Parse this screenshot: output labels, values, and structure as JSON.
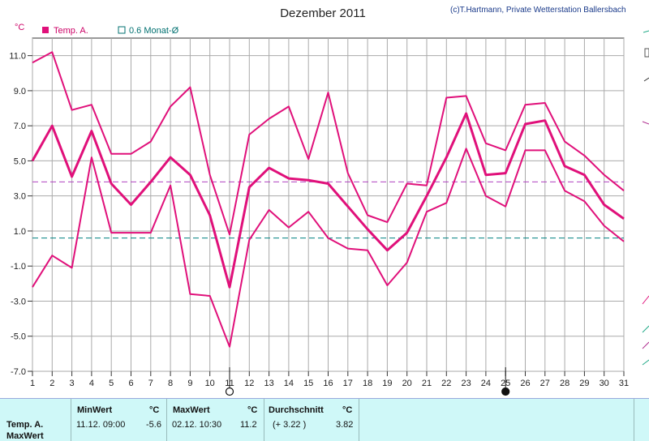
{
  "header": {
    "title": "Dezember 2011",
    "credit": "(c)T.Hartmann, Private Wetterstation Ballersbach",
    "unit": "°C"
  },
  "legend": {
    "series1": "Temp. A.",
    "series2": "0.6 Monat-Ø"
  },
  "chart_data": {
    "type": "line",
    "title": "Dezember 2011",
    "ylabel": "°C",
    "ylim": [
      -7,
      12
    ],
    "yticks": [
      "11.0",
      "9.0",
      "7.0",
      "5.0",
      "3.0",
      "1.0",
      "-1.0",
      "-3.0",
      "-5.0",
      "-7.0"
    ],
    "x": [
      1,
      2,
      3,
      4,
      5,
      6,
      7,
      8,
      9,
      10,
      11,
      12,
      13,
      14,
      15,
      16,
      17,
      18,
      19,
      20,
      21,
      22,
      23,
      24,
      25,
      26,
      27,
      28,
      29,
      30,
      31
    ],
    "series": [
      {
        "name": "max",
        "values": [
          10.6,
          11.2,
          7.9,
          8.2,
          5.4,
          5.4,
          6.1,
          8.1,
          9.2,
          4.2,
          0.8,
          6.5,
          7.4,
          8.1,
          5.1,
          8.9,
          4.3,
          1.9,
          1.5,
          3.7,
          3.6,
          8.6,
          8.7,
          6.0,
          5.6,
          8.2,
          8.3,
          6.1,
          5.3,
          4.2,
          3.3
        ]
      },
      {
        "name": "Temp. A.",
        "values": [
          5.0,
          7.0,
          4.1,
          6.7,
          3.7,
          2.5,
          3.8,
          5.2,
          4.2,
          1.9,
          -2.2,
          3.5,
          4.6,
          4.0,
          3.9,
          3.7,
          2.4,
          1.1,
          -0.1,
          0.9,
          3.0,
          5.2,
          7.7,
          4.2,
          4.3,
          7.1,
          7.3,
          4.7,
          4.2,
          2.5,
          1.7
        ]
      },
      {
        "name": "min",
        "values": [
          -2.2,
          -0.4,
          -1.1,
          5.2,
          0.9,
          0.9,
          0.9,
          3.6,
          -2.6,
          -2.7,
          -5.6,
          0.5,
          2.2,
          1.2,
          2.1,
          0.6,
          0.0,
          -0.1,
          -2.1,
          -0.8,
          2.1,
          2.6,
          5.7,
          3.0,
          2.4,
          5.6,
          5.6,
          3.3,
          2.7,
          1.3,
          0.4
        ]
      }
    ],
    "reference_lines": [
      {
        "value": 3.8,
        "color": "#b040c0",
        "style": "dashed"
      },
      {
        "value": 0.6,
        "color": "#008080",
        "style": "dashed"
      }
    ],
    "moon_markers": [
      {
        "day": 11,
        "phase": "full"
      },
      {
        "day": 25,
        "phase": "new"
      }
    ],
    "grid": true
  },
  "stats": {
    "row_label_1": "Temp. A.",
    "row_label_2": "MaxWert",
    "min_header": "MinWert",
    "min_unit": "°C",
    "min_datetime": "11.12. 09:00",
    "min_value": "-5.6",
    "max_header": "MaxWert",
    "max_unit": "°C",
    "max_datetime": "02.12. 10:30",
    "max_value": "11.2",
    "avg_header": "Durchschnitt",
    "avg_unit": "°C",
    "avg_delta": "(+ 3.22 )",
    "avg_value": "3.82"
  },
  "colors": {
    "series": "#e0107a",
    "grid": "#aaaaaa",
    "stats_bg": "#cff8f8"
  }
}
